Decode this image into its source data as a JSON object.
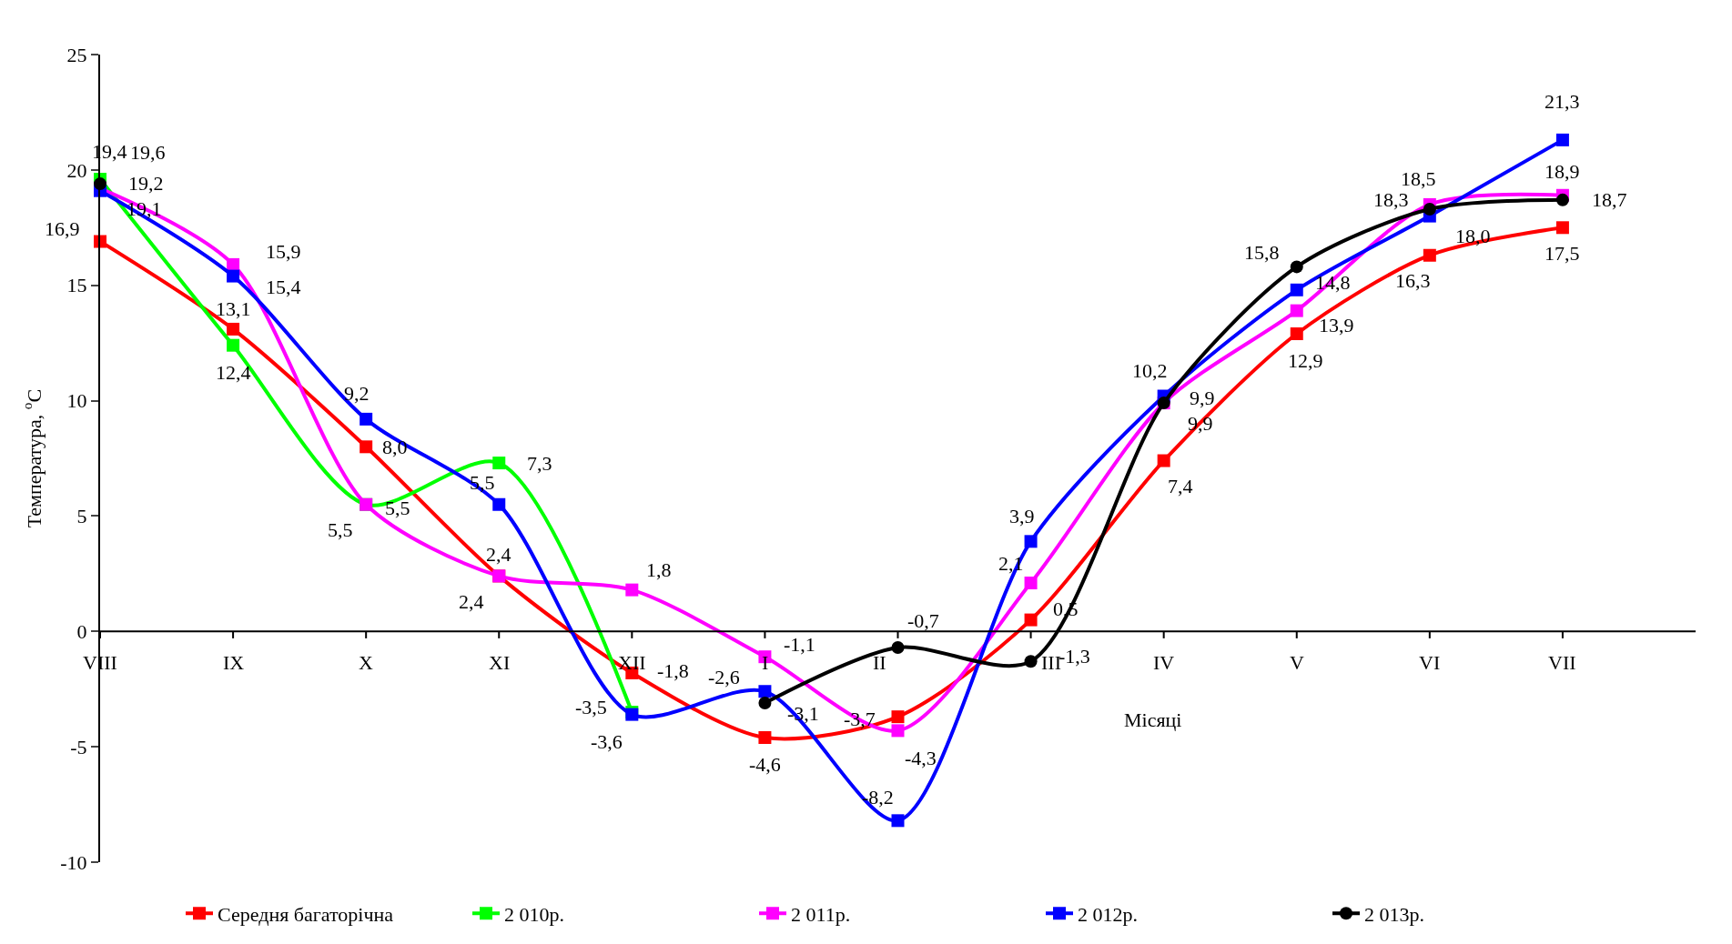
{
  "chart_data": {
    "type": "line",
    "categories": [
      "VIII",
      "IX",
      "X",
      "XI",
      "XII",
      "I",
      "II",
      "III",
      "IV",
      "V",
      "VI",
      "VII"
    ],
    "xlabel": "Місяці",
    "ylabel": "Температура, $^{o}$C",
    "series": [
      {
        "name": "Середня багаторічна",
        "color": "#ff0000",
        "marker": "square",
        "values": [
          16.9,
          13.1,
          8.0,
          2.4,
          -1.8,
          -4.6,
          -3.7,
          0.5,
          7.4,
          12.9,
          16.3,
          17.5
        ],
        "value_labels": [
          "16,9",
          "13,1",
          "8,0",
          "2,4",
          "-1,8",
          "-4,6",
          "-3,7",
          "0,5",
          "7,4",
          "12,9",
          "16,3",
          "17,5"
        ]
      },
      {
        "name": "2 010р.",
        "color": "#00ff00",
        "marker": "square",
        "values": [
          19.6,
          12.4,
          5.5,
          7.3,
          -3.5,
          null,
          null,
          null,
          null,
          null,
          null,
          null
        ],
        "value_labels": [
          "19,6",
          "12,4",
          "5,5",
          "7,3",
          "-3,5",
          null,
          null,
          null,
          null,
          null,
          null,
          null
        ]
      },
      {
        "name": "2 011р.",
        "color": "#ff00ff",
        "marker": "square",
        "values": [
          19.2,
          15.9,
          5.5,
          2.4,
          1.8,
          -1.1,
          -4.3,
          2.1,
          9.9,
          13.9,
          18.5,
          18.9
        ],
        "value_labels": [
          "19,2",
          "15,9",
          "5,5",
          "2,4",
          "1,8",
          "-1,1",
          "-4,3",
          "2,1",
          "9,9",
          "13,9",
          "18,5",
          "18,9"
        ]
      },
      {
        "name": "2 012р.",
        "color": "#0000ff",
        "marker": "square",
        "values": [
          19.1,
          15.4,
          9.2,
          5.5,
          -3.6,
          -2.6,
          -8.2,
          3.9,
          10.2,
          14.8,
          18.0,
          21.3
        ],
        "value_labels": [
          "19,1",
          "15,4",
          "9,2",
          "5,5",
          "-3,6",
          "-2,6",
          "-8,2",
          "3,9",
          "10,2",
          "14,8",
          "18,0",
          "21,3"
        ]
      },
      {
        "name": "2 013р.",
        "color": "#000000",
        "marker": "circle",
        "values": [
          19.4,
          null,
          null,
          null,
          null,
          -3.1,
          -0.7,
          -1.3,
          9.9,
          15.8,
          18.3,
          18.7
        ],
        "value_labels": [
          "19,4",
          null,
          null,
          null,
          null,
          "-3,1",
          "-0,7",
          "-1,3",
          "9,9",
          "15,8",
          "18,3",
          "18,7"
        ]
      }
    ],
    "ylim": [
      -10,
      25
    ],
    "yticks": [
      -10,
      -5,
      0,
      5,
      10,
      15,
      20,
      25
    ],
    "legend": "bottom"
  }
}
